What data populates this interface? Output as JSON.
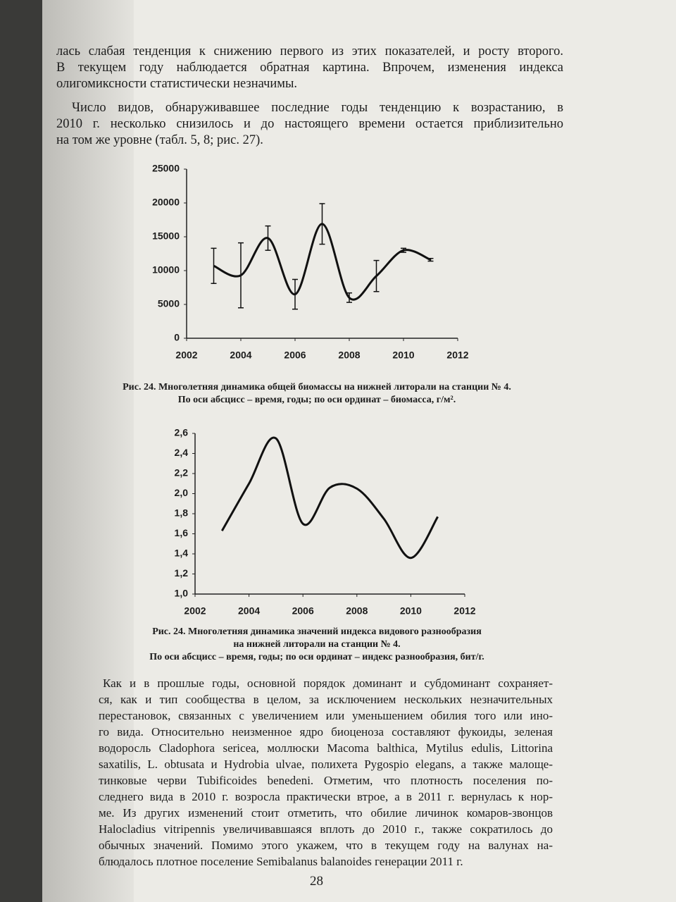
{
  "paragraphs": [
    {
      "lines": [
        "лась слабая тенденция к снижению первого из этих показателей, и росту второго.",
        "В текущем году наблюдается обратная картина. Впрочем, изменения индекса",
        "олигомиксности статистически незначимы."
      ]
    },
    {
      "lines": [
        "Число видов, обнаруживавшее последние годы тенденцию к возрастанию, в",
        "2010 г. несколько снизилось и до настоящего времени остается приблизительно",
        "на том же уровне (табл. 5, 8; рис. 27)."
      ]
    },
    {
      "lines": [
        "Как и в прошлые годы, основной порядок доминант и субдоминант сохраняет-",
        "ся, как и тип сообщества в целом, за исключением нескольких незначительных",
        "перестановок, связанных с увеличением или уменьшением обилия того или ино-",
        "го вида. Относительно неизменное ядро биоценоза составляют фукоиды, зеленая",
        "водоросль Cladophora sericea, моллюски Macoma balthica, Mytilus edulis, Littorina",
        "saxatilis, L. obtusata и Hydrobia ulvae, полихета Pygospio elegans, а также малоще-",
        "тинковые черви Tubificoides benedeni. Отметим, что плотность поселения по-",
        "следнего вида в 2010 г. возросла практически втрое, а в 2011 г. вернулась к нор-",
        "ме. Из других изменений стоит отметить, что обилие личинок комаров-звонцов",
        "Halocladius vitripennis увеличивавшаяся вплоть до 2010 г., также сократилось до",
        "обычных значений. Помимо этого укажем, что в текущем году на валунах на-",
        "блюдалось плотное поселение Semibalanus balanoides генерации 2011 г."
      ]
    }
  ],
  "chart_data": [
    {
      "type": "line",
      "caption": [
        "Рис. 24. Многолетняя динамика общей биомассы на нижней литорали на станции № 4.",
        "По оси абсцисс – время, годы; по оси ординат – биомасса, г/м²."
      ],
      "x": [
        2003,
        2004,
        2005,
        2006,
        2007,
        2008,
        2009,
        2010,
        2011
      ],
      "values": [
        10700,
        9300,
        14800,
        6500,
        16900,
        6000,
        9200,
        13000,
        11600
      ],
      "errors": [
        2600,
        4800,
        1800,
        2200,
        3000,
        700,
        2300,
        300,
        200
      ],
      "xlim": [
        2002,
        2012
      ],
      "xticks": [
        2002,
        2004,
        2006,
        2008,
        2010,
        2012
      ],
      "ylim": [
        0,
        25000
      ],
      "yticks": [
        0,
        5000,
        10000,
        15000,
        20000,
        25000
      ],
      "color": "#111111"
    },
    {
      "type": "line",
      "caption": [
        "Рис. 24. Многолетняя динамика значений индекса видового разнообразия",
        "на нижней литорали на станции № 4.",
        "По оси абсцисс – время, годы; по оси ординат – индекс разнообразия, бит/г."
      ],
      "x": [
        2003,
        2004,
        2005,
        2006,
        2007,
        2008,
        2009,
        2010,
        2011
      ],
      "values": [
        1.63,
        2.1,
        2.55,
        1.7,
        2.06,
        2.05,
        1.75,
        1.36,
        1.77
      ],
      "xlim": [
        2002,
        2012
      ],
      "xticks": [
        2002,
        2004,
        2006,
        2008,
        2010,
        2012
      ],
      "ylim": [
        1.0,
        2.6
      ],
      "yticks": [
        {
          "value": 1.0,
          "label": "1,0"
        },
        {
          "value": 1.2,
          "label": "1,2"
        },
        {
          "value": 1.4,
          "label": "1,4"
        },
        {
          "value": 1.6,
          "label": "1,6"
        },
        {
          "value": 1.8,
          "label": "1,8"
        },
        {
          "value": 2.0,
          "label": "2,0"
        },
        {
          "value": 2.2,
          "label": "2,2"
        },
        {
          "value": 2.4,
          "label": "2,4"
        },
        {
          "value": 2.6,
          "label": "2,6"
        }
      ],
      "color": "#111111"
    }
  ],
  "page_number": "28"
}
